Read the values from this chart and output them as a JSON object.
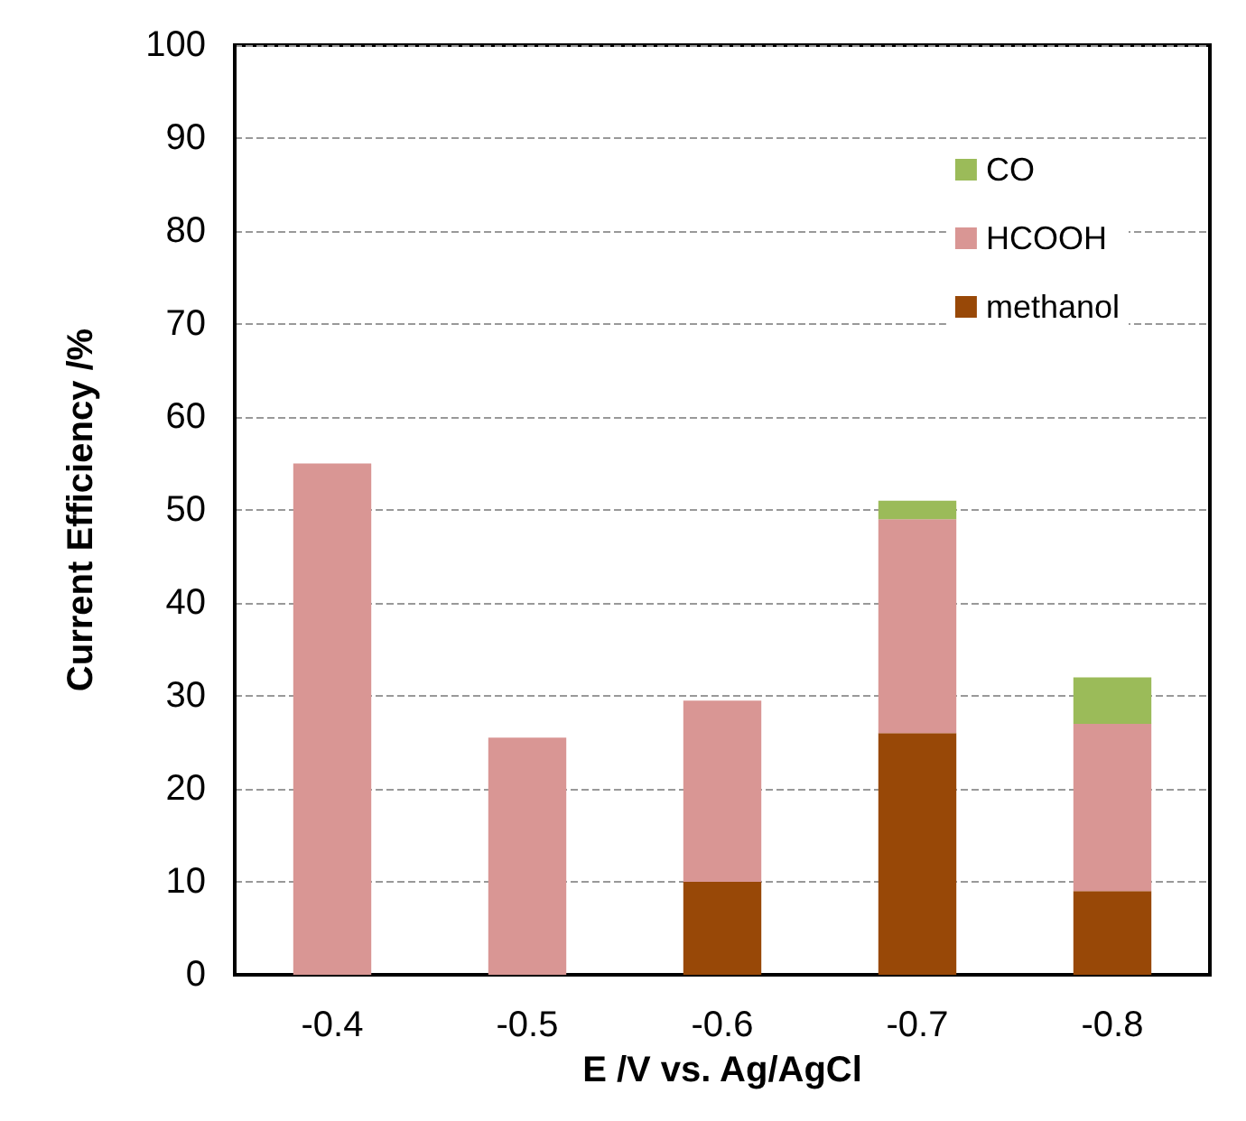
{
  "chart_data": {
    "type": "bar",
    "xlabel": "E /V vs. Ag/AgCl",
    "ylabel": "Current Efficiency /%",
    "categories": [
      "-0.4",
      "-0.5",
      "-0.6",
      "-0.7",
      "-0.8"
    ],
    "stacked": true,
    "series": [
      {
        "name": "methanol",
        "color": "#984807",
        "values": [
          0,
          0,
          10,
          26,
          9
        ]
      },
      {
        "name": "HCOOH",
        "color": "#d99694",
        "values": [
          55,
          25.5,
          19.5,
          23,
          18
        ]
      },
      {
        "name": "CO",
        "color": "#9bbb59",
        "values": [
          0,
          0,
          0,
          2,
          5
        ]
      }
    ],
    "ylim": [
      0,
      100
    ],
    "yticks": [
      0,
      10,
      20,
      30,
      40,
      50,
      60,
      70,
      80,
      90,
      100
    ],
    "grid": "y",
    "legend": "top right"
  }
}
